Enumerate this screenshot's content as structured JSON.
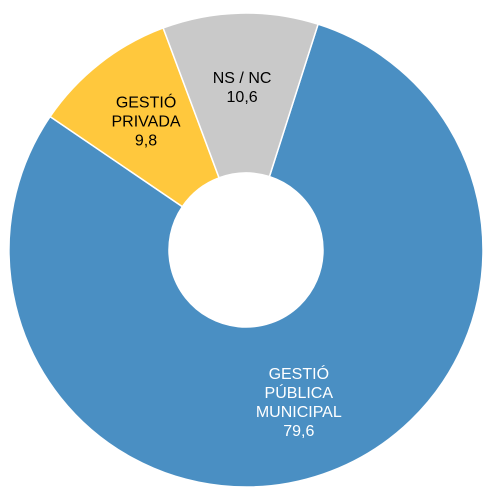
{
  "chart_data": {
    "type": "donut",
    "categories": [
      [
        "GESTIÓ",
        "PÚBLICA",
        "MUNICIPAL"
      ],
      [
        "GESTIÓ",
        "PRIVADA"
      ],
      [
        "NS / NC"
      ]
    ],
    "values": [
      79.6,
      9.8,
      10.6
    ],
    "value_labels": [
      "79,6",
      "9,8",
      "10,6"
    ],
    "colors": [
      "#4a8fc3",
      "#ffc83d",
      "#c9c9c9"
    ],
    "label_colors": [
      "#ffffff",
      "#000000",
      "#000000"
    ]
  }
}
